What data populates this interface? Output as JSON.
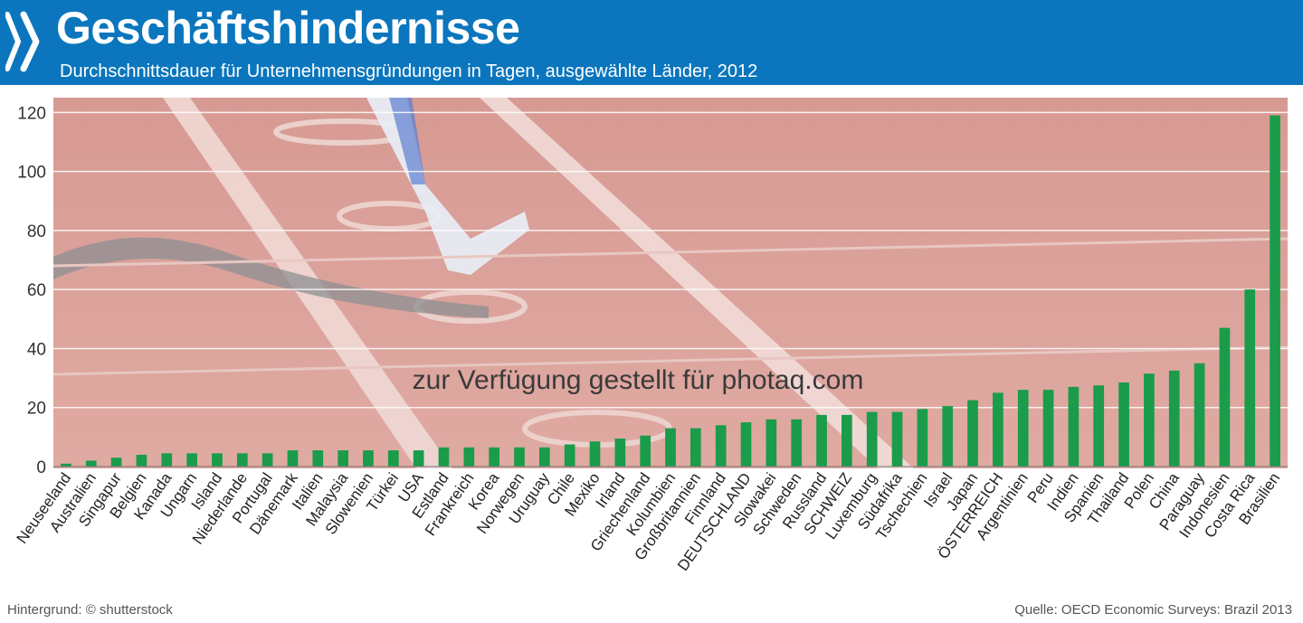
{
  "header": {
    "title": "Geschäftshindernisse",
    "subtitle": "Durchschnittsdauer für Unternehmensgründungen in Tagen, ausgewählte Länder, 2012",
    "logo": "oecd-chevron-icon"
  },
  "colors": {
    "header_bg": "#0b76bd",
    "bar": "#1a9c4a",
    "background_track": "#dba29a",
    "grid": "#ffffff"
  },
  "watermark": "zur Verfügung gestellt für photaq.com",
  "footer": {
    "left": "Hintergrund: © shutterstock",
    "right": "Quelle: OECD Economic Surveys: Brazil 2013"
  },
  "chart_data": {
    "type": "bar",
    "title": "Geschäftshindernisse",
    "subtitle": "Durchschnittsdauer für Unternehmensgründungen in Tagen, ausgewählte Länder, 2012",
    "xlabel": "",
    "ylabel": "",
    "ylim": [
      0,
      125
    ],
    "yticks": [
      0,
      20,
      40,
      60,
      80,
      100,
      120
    ],
    "grid": true,
    "legend": "none",
    "categories": [
      "Neuseeland",
      "Australien",
      "Singapur",
      "Belgien",
      "Kanada",
      "Ungarn",
      "Island",
      "Niederlande",
      "Portugal",
      "Dänemark",
      "Italien",
      "Malaysia",
      "Slowenien",
      "Türkei",
      "USA",
      "Estland",
      "Frankreich",
      "Korea",
      "Norwegen",
      "Uruguay",
      "Chile",
      "Mexiko",
      "Irland",
      "Griechenland",
      "Kolumbien",
      "Großbritannien",
      "Finnland",
      "DEUTSCHLAND",
      "Slowakei",
      "Schweden",
      "Russland",
      "SCHWEIZ",
      "Luxemburg",
      "Südafrika",
      "Tschechien",
      "Israel",
      "Japan",
      "ÖSTERREICH",
      "Argentinien",
      "Peru",
      "Indien",
      "Spanien",
      "Thailand",
      "Polen",
      "China",
      "Paraguay",
      "Indonesien",
      "Costa Rica",
      "Brasilien"
    ],
    "values": [
      1,
      2,
      3,
      4,
      4.5,
      4.5,
      4.5,
      4.5,
      4.5,
      5.5,
      5.5,
      5.5,
      5.5,
      5.5,
      5.5,
      6.5,
      6.5,
      6.5,
      6.5,
      6.5,
      7.5,
      8.5,
      9.5,
      10.5,
      13,
      13,
      14,
      15,
      16,
      16,
      17.5,
      17.5,
      18.5,
      18.5,
      19.5,
      20.5,
      22.5,
      25,
      26,
      26,
      27,
      27.5,
      28.5,
      31.5,
      32.5,
      35,
      47,
      60,
      119
    ]
  }
}
